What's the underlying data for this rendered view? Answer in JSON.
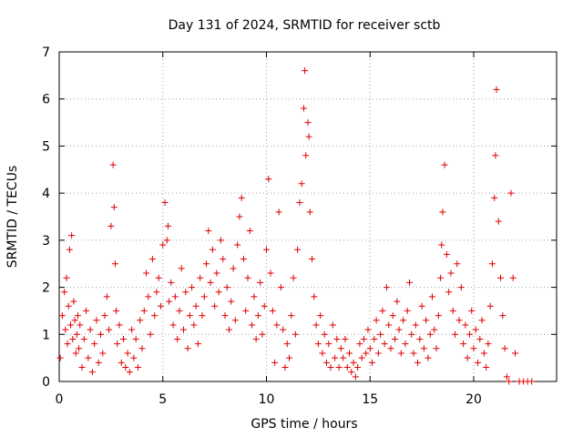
{
  "chart_data": {
    "type": "scatter",
    "title": "Day 131 of 2024, SRMTID for receiver sctb",
    "xlabel": "GPS time / hours",
    "ylabel": "SRMTID / TECUs",
    "xlim": [
      0,
      24
    ],
    "ylim": [
      0,
      7
    ],
    "x_ticks": [
      0,
      5,
      10,
      15,
      20
    ],
    "x_tick_labels": [
      "0",
      "5",
      "10",
      "15",
      "20"
    ],
    "y_ticks": [
      0,
      1,
      2,
      3,
      4,
      5,
      6,
      7
    ],
    "y_tick_labels": [
      "0",
      "1",
      "2",
      "3",
      "4",
      "5",
      "6",
      "7"
    ],
    "grid": true,
    "marker": "plus",
    "color": "#e00000",
    "series": [
      {
        "name": "SRMTID",
        "x": [
          0.05,
          0.15,
          0.25,
          0.3,
          0.35,
          0.4,
          0.45,
          0.5,
          0.55,
          0.6,
          0.65,
          0.7,
          0.75,
          0.8,
          0.85,
          0.9,
          0.95,
          1.0,
          1.1,
          1.2,
          1.3,
          1.4,
          1.5,
          1.6,
          1.7,
          1.8,
          1.9,
          2.0,
          2.1,
          2.2,
          2.3,
          2.4,
          2.5,
          2.6,
          2.65,
          2.7,
          2.75,
          2.8,
          2.9,
          3.0,
          3.1,
          3.2,
          3.3,
          3.4,
          3.5,
          3.6,
          3.7,
          3.8,
          3.9,
          4.0,
          4.1,
          4.2,
          4.3,
          4.4,
          4.5,
          4.6,
          4.7,
          4.8,
          4.9,
          5.0,
          5.1,
          5.2,
          5.25,
          5.3,
          5.4,
          5.5,
          5.6,
          5.7,
          5.8,
          5.9,
          6.0,
          6.1,
          6.2,
          6.3,
          6.4,
          6.5,
          6.6,
          6.7,
          6.8,
          6.9,
          7.0,
          7.1,
          7.2,
          7.3,
          7.4,
          7.5,
          7.6,
          7.7,
          7.8,
          7.9,
          8.0,
          8.1,
          8.2,
          8.3,
          8.4,
          8.5,
          8.6,
          8.7,
          8.8,
          8.9,
          9.0,
          9.1,
          9.2,
          9.3,
          9.4,
          9.5,
          9.6,
          9.7,
          9.8,
          9.9,
          10.0,
          10.1,
          10.2,
          10.3,
          10.4,
          10.5,
          10.6,
          10.7,
          10.8,
          10.9,
          11.0,
          11.1,
          11.2,
          11.3,
          11.4,
          11.5,
          11.6,
          11.7,
          11.8,
          11.85,
          11.9,
          12.0,
          12.05,
          12.1,
          12.2,
          12.3,
          12.4,
          12.5,
          12.6,
          12.7,
          12.8,
          12.9,
          13.0,
          13.1,
          13.2,
          13.3,
          13.4,
          13.5,
          13.6,
          13.7,
          13.8,
          13.9,
          14.0,
          14.1,
          14.2,
          14.3,
          14.4,
          14.5,
          14.6,
          14.7,
          14.8,
          14.9,
          15.0,
          15.1,
          15.2,
          15.3,
          15.4,
          15.5,
          15.6,
          15.7,
          15.8,
          15.9,
          16.0,
          16.1,
          16.2,
          16.3,
          16.4,
          16.5,
          16.6,
          16.7,
          16.8,
          16.9,
          17.0,
          17.1,
          17.2,
          17.3,
          17.4,
          17.5,
          17.6,
          17.7,
          17.8,
          17.9,
          18.0,
          18.1,
          18.2,
          18.3,
          18.4,
          18.45,
          18.5,
          18.6,
          18.7,
          18.8,
          18.9,
          19.0,
          19.1,
          19.2,
          19.3,
          19.4,
          19.5,
          19.6,
          19.7,
          19.8,
          19.9,
          20.0,
          20.1,
          20.2,
          20.3,
          20.4,
          20.5,
          20.6,
          20.7,
          20.8,
          20.9,
          21.0,
          21.05,
          21.1,
          21.2,
          21.3,
          21.4,
          21.5,
          21.6,
          21.7,
          21.8,
          21.9,
          22.0,
          22.2,
          22.4,
          22.6,
          22.8
        ],
        "y": [
          0.5,
          1.4,
          1.9,
          1.1,
          2.2,
          0.8,
          1.6,
          2.8,
          1.2,
          3.1,
          0.9,
          1.7,
          1.3,
          0.6,
          1.0,
          1.4,
          0.7,
          1.2,
          0.3,
          0.9,
          1.5,
          0.5,
          1.1,
          0.2,
          0.8,
          1.3,
          0.4,
          1.0,
          0.6,
          1.4,
          1.8,
          1.1,
          3.3,
          4.6,
          3.7,
          2.5,
          1.5,
          0.8,
          1.2,
          0.4,
          0.9,
          0.3,
          0.6,
          0.2,
          1.1,
          0.5,
          0.9,
          0.3,
          1.3,
          0.7,
          1.5,
          2.3,
          1.8,
          1.0,
          2.6,
          1.4,
          1.9,
          2.2,
          1.6,
          2.9,
          3.8,
          3.0,
          3.3,
          1.7,
          2.1,
          1.2,
          1.8,
          0.9,
          1.5,
          2.4,
          1.1,
          1.9,
          0.7,
          1.4,
          2.0,
          1.2,
          1.6,
          0.8,
          2.2,
          1.4,
          1.8,
          2.5,
          3.2,
          2.1,
          2.8,
          1.6,
          2.3,
          1.9,
          3.0,
          2.6,
          1.4,
          2.0,
          1.1,
          1.7,
          2.4,
          1.3,
          2.9,
          3.5,
          3.9,
          2.6,
          1.5,
          2.2,
          3.2,
          1.2,
          1.8,
          0.9,
          1.4,
          2.1,
          1.0,
          1.6,
          2.8,
          4.3,
          2.3,
          1.5,
          0.4,
          1.2,
          3.6,
          2.0,
          1.1,
          0.3,
          0.8,
          0.5,
          1.4,
          2.2,
          1.0,
          2.8,
          3.8,
          4.2,
          5.8,
          6.6,
          4.8,
          5.5,
          5.2,
          3.6,
          2.6,
          1.8,
          1.2,
          0.8,
          1.4,
          0.6,
          1.0,
          0.4,
          0.8,
          0.3,
          1.2,
          0.5,
          0.9,
          0.3,
          0.7,
          0.5,
          0.9,
          0.3,
          0.6,
          0.2,
          0.4,
          0.1,
          0.3,
          0.8,
          0.5,
          0.9,
          0.6,
          1.1,
          0.7,
          0.4,
          0.9,
          1.3,
          0.6,
          1.0,
          1.5,
          0.8,
          2.0,
          1.2,
          0.7,
          1.4,
          0.9,
          1.7,
          1.1,
          0.6,
          1.3,
          0.8,
          1.5,
          2.1,
          1.0,
          0.6,
          1.2,
          0.4,
          0.9,
          1.6,
          0.7,
          1.3,
          0.5,
          1.0,
          1.8,
          1.1,
          0.7,
          1.4,
          2.2,
          2.9,
          3.6,
          4.6,
          2.7,
          1.9,
          2.3,
          1.5,
          1.0,
          2.5,
          1.3,
          2.0,
          0.8,
          1.2,
          0.5,
          1.0,
          1.5,
          0.7,
          1.1,
          0.4,
          0.9,
          1.3,
          0.6,
          0.3,
          0.8,
          1.6,
          2.5,
          3.9,
          4.8,
          6.2,
          3.4,
          2.2,
          1.4,
          0.7,
          0.1,
          0.0,
          4.0,
          2.2,
          0.6,
          0.0,
          0.0,
          0.0,
          0.0
        ]
      }
    ]
  }
}
